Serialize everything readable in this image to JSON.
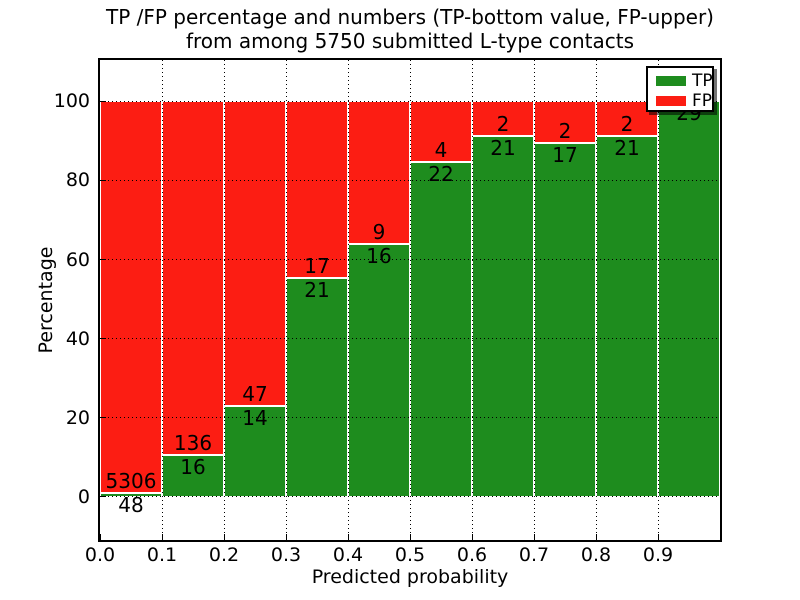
{
  "title": {
    "line1": "TP /FP percentage and numbers (TP-bottom value, FP-upper)",
    "line2": "from among 5750 submitted L-type contacts"
  },
  "axes": {
    "xlabel": "Predicted probability",
    "ylabel": "Percentage",
    "xtick_labels": [
      "0.0",
      "0.1",
      "0.2",
      "0.3",
      "0.4",
      "0.5",
      "0.6",
      "0.7",
      "0.8",
      "0.9"
    ],
    "ytick_labels": [
      "0",
      "20",
      "40",
      "60",
      "80",
      "100"
    ]
  },
  "legend": {
    "items": [
      {
        "label": "TP",
        "color": "#1e8c1e"
      },
      {
        "label": "FP",
        "color": "#fc1d13"
      }
    ]
  },
  "colors": {
    "tp_green": "#1e8c1e",
    "fp_red": "#fc1d13",
    "grid": "#000000",
    "background": "#ffffff"
  },
  "chart_data": {
    "type": "bar",
    "stacked": true,
    "orientation": "vertical",
    "title": "TP /FP percentage and numbers (TP-bottom value, FP-upper) from among 5750 submitted L-type contacts",
    "xlabel": "Predicted probability",
    "ylabel": "Percentage",
    "categories": [
      "0.0-0.1",
      "0.1-0.2",
      "0.2-0.3",
      "0.3-0.4",
      "0.4-0.5",
      "0.5-0.6",
      "0.6-0.7",
      "0.7-0.8",
      "0.8-0.9",
      "0.9-1.0"
    ],
    "bin_width": 0.1,
    "series": [
      {
        "name": "TP",
        "color": "#1e8c1e",
        "counts": [
          48,
          16,
          14,
          21,
          16,
          22,
          21,
          17,
          21,
          29
        ],
        "percent_of_bin": [
          0.9,
          10.5,
          23.0,
          55.3,
          64.0,
          84.6,
          91.3,
          89.5,
          91.3,
          100.0
        ]
      },
      {
        "name": "FP",
        "color": "#fc1d13",
        "counts": [
          5306,
          136,
          47,
          17,
          9,
          4,
          2,
          2,
          2,
          0
        ],
        "percent_of_bin": [
          99.1,
          89.5,
          77.0,
          44.7,
          36.0,
          15.4,
          8.7,
          10.5,
          8.7,
          0.0
        ]
      }
    ],
    "bar_value_labels": "FP count printed above the TP/FP boundary, TP count printed below it; FP label omitted when count is 0",
    "xlim": [
      0.0,
      1.0
    ],
    "ylim": [
      -11,
      110.5
    ],
    "xticks": [
      0.0,
      0.1,
      0.2,
      0.3,
      0.4,
      0.5,
      0.6,
      0.7,
      0.8,
      0.9
    ],
    "yticks": [
      0,
      20,
      40,
      60,
      80,
      100
    ],
    "grid": "dotted black, horizontal and vertical, drawn over bars",
    "legend_position": "upper right",
    "total_submitted": 5750
  }
}
